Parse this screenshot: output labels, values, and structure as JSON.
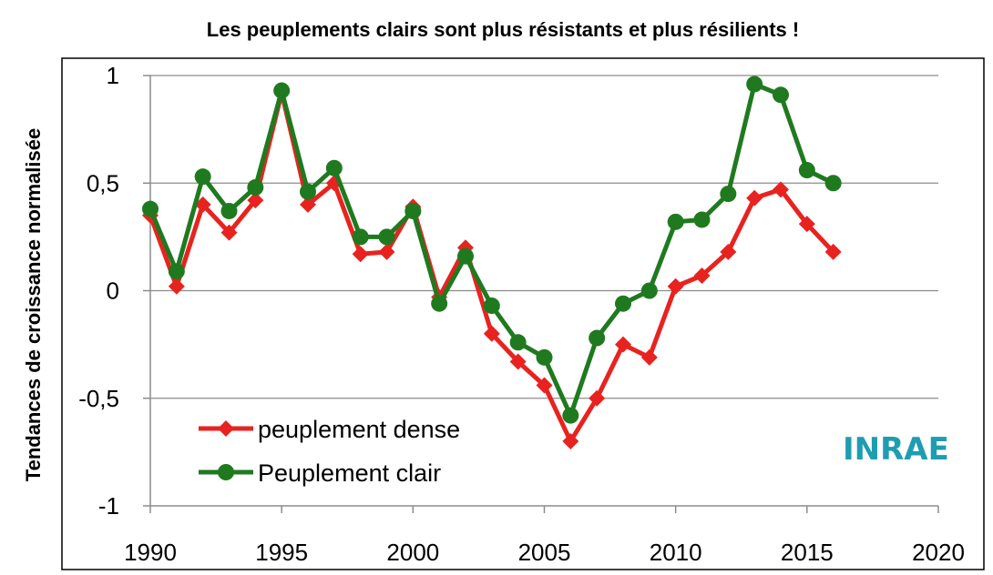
{
  "chart_data": {
    "type": "line",
    "title": "Les peuplements clairs sont plus résistants et plus résilients !",
    "ylabel": "Tendances de croissance normalisée",
    "xlim": [
      1990,
      2020
    ],
    "ylim": [
      -1,
      1
    ],
    "x_ticks": [
      "1990",
      "1995",
      "2000",
      "2005",
      "2010",
      "2015",
      "2020"
    ],
    "y_ticks": [
      {
        "value": 1,
        "label": "1"
      },
      {
        "value": 0.5,
        "label": "0,5"
      },
      {
        "value": 0,
        "label": "0"
      },
      {
        "value": -0.5,
        "label": "-0,5"
      },
      {
        "value": -1,
        "label": "-1"
      }
    ],
    "grid": "horizontal",
    "legend_position": "bottom-left",
    "x": [
      1990,
      1991,
      1992,
      1993,
      1994,
      1995,
      1996,
      1997,
      1998,
      1999,
      2000,
      2001,
      2002,
      2003,
      2004,
      2005,
      2006,
      2007,
      2008,
      2009,
      2010,
      2011,
      2012,
      2013,
      2014,
      2015,
      2016
    ],
    "series": [
      {
        "name": "peuplement dense",
        "color": "#e8231f",
        "marker": "diamond",
        "values": [
          0.35,
          0.02,
          0.4,
          0.27,
          0.42,
          0.92,
          0.4,
          0.5,
          0.17,
          0.18,
          0.39,
          -0.03,
          0.2,
          -0.2,
          -0.33,
          -0.44,
          -0.7,
          -0.5,
          -0.25,
          -0.31,
          0.02,
          0.07,
          0.18,
          0.43,
          0.47,
          0.31,
          0.18
        ]
      },
      {
        "name": "Peuplement clair",
        "color": "#1f7a1f",
        "marker": "circle",
        "values": [
          0.38,
          0.09,
          0.53,
          0.37,
          0.48,
          0.93,
          0.46,
          0.57,
          0.25,
          0.25,
          0.37,
          -0.06,
          0.16,
          -0.07,
          -0.24,
          -0.31,
          -0.58,
          -0.22,
          -0.06,
          0.0,
          0.32,
          0.33,
          0.45,
          0.96,
          0.91,
          0.56,
          0.5
        ]
      }
    ]
  },
  "logo": {
    "text": "INRAE",
    "color": "#1e9db1"
  }
}
